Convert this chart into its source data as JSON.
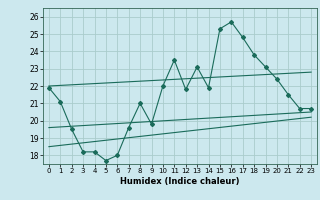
{
  "xlabel": "Humidex (Indice chaleur)",
  "bg_color": "#cce8ee",
  "line_color": "#1a6b5a",
  "grid_color": "#aacccc",
  "xlim": [
    -0.5,
    23.5
  ],
  "ylim": [
    17.5,
    26.5
  ],
  "yticks": [
    18,
    19,
    20,
    21,
    22,
    23,
    24,
    25,
    26
  ],
  "xticks": [
    0,
    1,
    2,
    3,
    4,
    5,
    6,
    7,
    8,
    9,
    10,
    11,
    12,
    13,
    14,
    15,
    16,
    17,
    18,
    19,
    20,
    21,
    22,
    23
  ],
  "main_x": [
    0,
    1,
    2,
    3,
    4,
    5,
    6,
    7,
    8,
    9,
    10,
    11,
    12,
    13,
    14,
    15,
    16,
    17,
    18,
    19,
    20,
    21,
    22,
    23
  ],
  "main_y": [
    21.9,
    21.1,
    19.5,
    18.2,
    18.2,
    17.7,
    18.0,
    19.6,
    21.0,
    19.8,
    22.0,
    23.5,
    21.8,
    23.1,
    21.9,
    25.3,
    25.7,
    24.8,
    23.8,
    23.1,
    22.4,
    21.5,
    20.7,
    20.7
  ],
  "upper_line_x": [
    0,
    23
  ],
  "upper_line_y": [
    22.0,
    22.8
  ],
  "lower_line_x": [
    0,
    23
  ],
  "lower_line_y": [
    19.6,
    20.5
  ],
  "bottom_line_x": [
    0,
    23
  ],
  "bottom_line_y": [
    18.5,
    20.2
  ]
}
